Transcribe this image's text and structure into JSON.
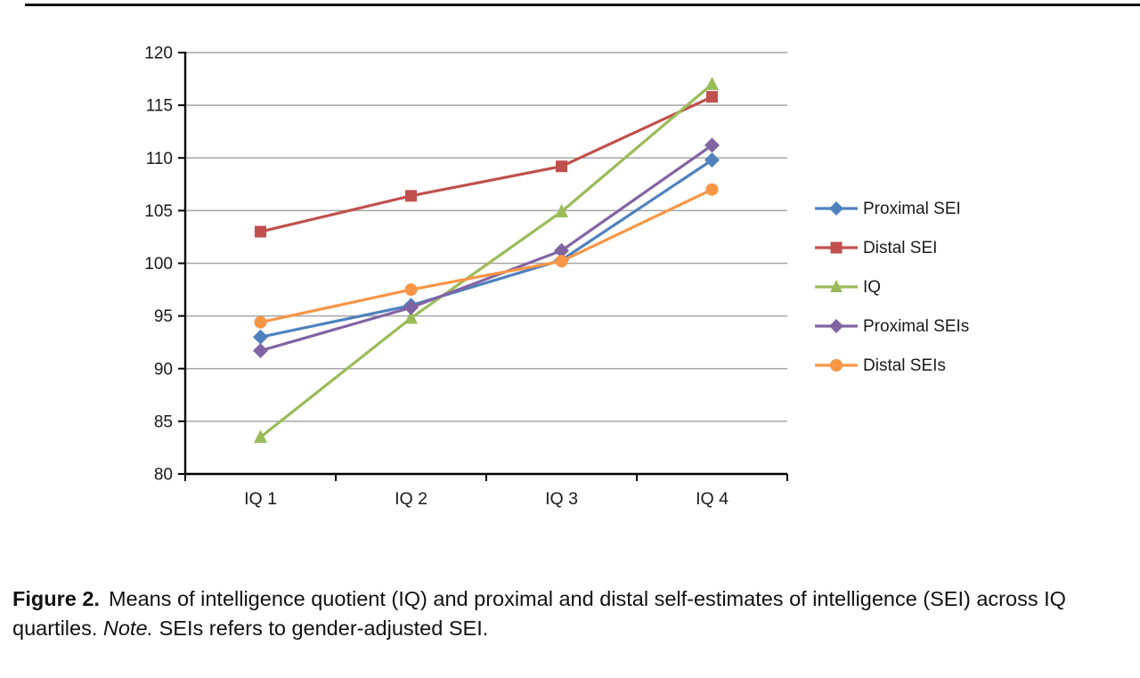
{
  "chart_data": {
    "type": "line",
    "categories": [
      "IQ 1",
      "IQ 2",
      "IQ 3",
      "IQ 4"
    ],
    "series": [
      {
        "name": "Proximal SEI",
        "color": "#4F81BD",
        "marker": "diamond",
        "values": [
          93.0,
          96.0,
          100.3,
          109.8
        ]
      },
      {
        "name": "Distal SEI",
        "color": "#C0504D",
        "marker": "square",
        "values": [
          103.0,
          106.4,
          109.2,
          115.8
        ]
      },
      {
        "name": "IQ",
        "color": "#9BBB59",
        "marker": "triangle",
        "values": [
          83.5,
          94.8,
          104.9,
          117.0
        ]
      },
      {
        "name": "Proximal SEIs",
        "color": "#8064A2",
        "marker": "diamond",
        "values": [
          91.7,
          95.8,
          101.2,
          111.2
        ]
      },
      {
        "name": "Distal SEIs",
        "color": "#F79646",
        "marker": "circle",
        "values": [
          94.4,
          97.5,
          100.2,
          107.0
        ]
      }
    ],
    "title": "",
    "xlabel": "",
    "ylabel": "",
    "ylim": [
      80,
      120
    ],
    "ytick_step": 5,
    "grid": "horizontal",
    "gridline_color": "#a6a6a6",
    "axis_color": "#000000",
    "legend_position": "right"
  },
  "caption": {
    "figure_label": "Figure 2.",
    "text_main": "Means of intelligence quotient (IQ) and proximal and distal self-estimates of intelligence (SEI) across IQ quartiles.",
    "note_label": "Note.",
    "text_note": "SEIs refers to gender-adjusted SEI."
  }
}
